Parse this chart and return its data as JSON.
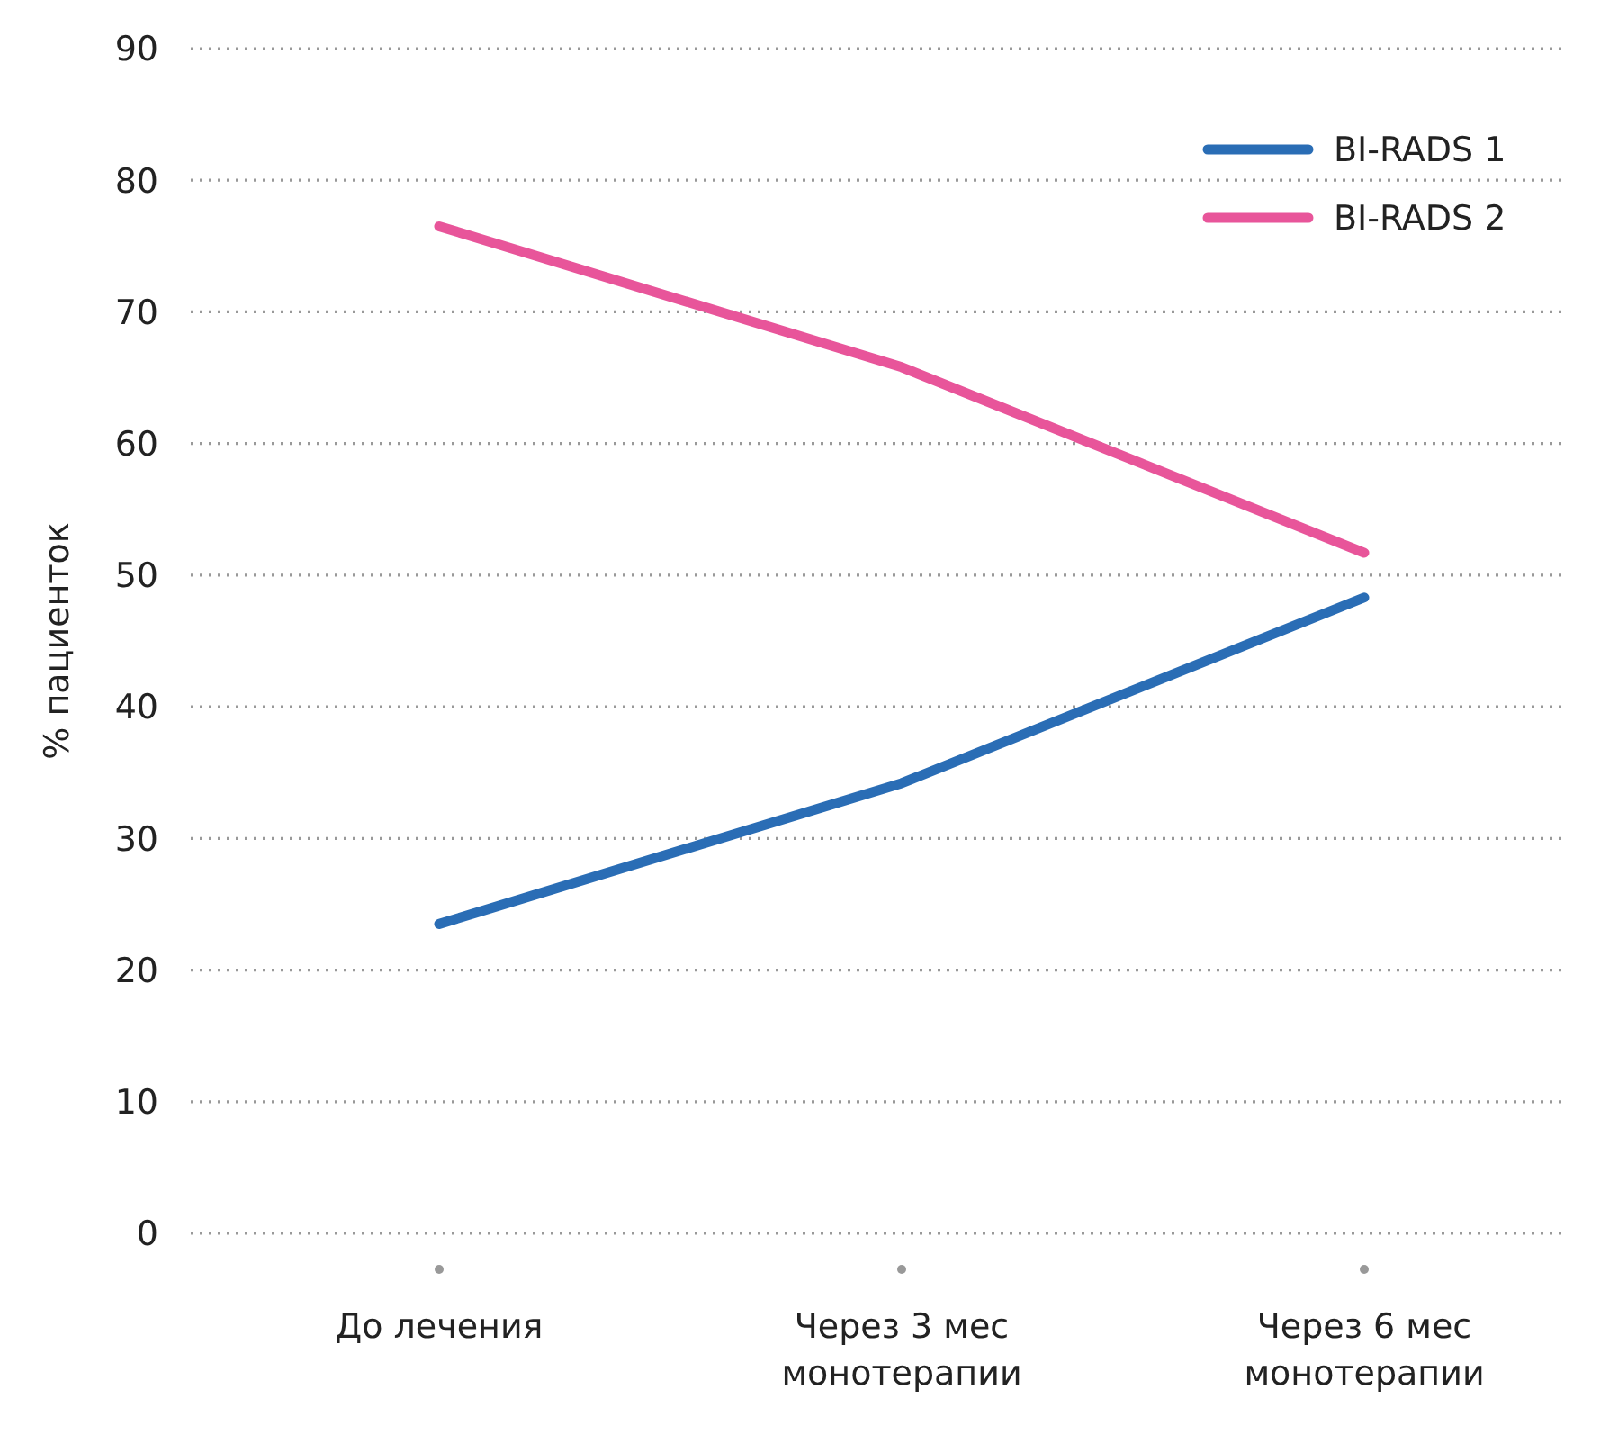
{
  "chart_data": {
    "type": "line",
    "ylabel": "% пациенток",
    "categories": [
      "До лечения",
      "Через 3 мес монотерапии",
      "Через 6 мес монотерапии"
    ],
    "series": [
      {
        "name": "BI-RADS 1",
        "color": "#2a6db5",
        "values": [
          23.5,
          34.2,
          48.3
        ]
      },
      {
        "name": "BI-RADS 2",
        "color": "#e8559a",
        "values": [
          76.5,
          65.8,
          51.7
        ]
      }
    ],
    "ylim": [
      0,
      90
    ],
    "yticks": [
      0,
      10,
      20,
      30,
      40,
      50,
      60,
      70,
      80,
      90
    ],
    "grid": "y",
    "legend": "top right",
    "marker": "none",
    "line_style": "solid"
  }
}
